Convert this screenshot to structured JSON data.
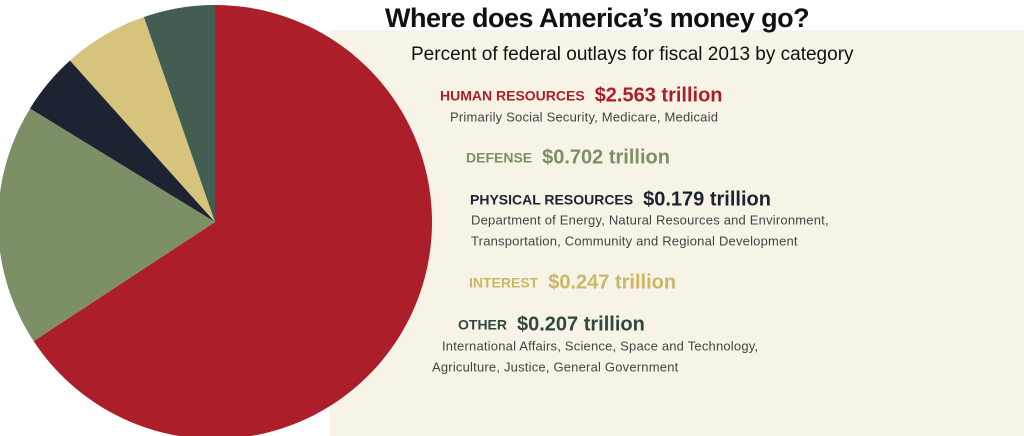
{
  "chart_data": {
    "type": "pie",
    "title": "Where does America’s money go?",
    "subtitle": "Percent of federal outlays for fiscal 2013 by category",
    "categories": [
      "HUMAN RESOURCES",
      "DEFENSE",
      "PHYSICAL RESOURCES",
      "INTEREST",
      "OTHER"
    ],
    "values": [
      2.563,
      0.702,
      0.179,
      0.247,
      0.207
    ],
    "value_labels": [
      "$2.563 trillion",
      "$0.702 trillion",
      "$0.179 trillion",
      "$0.247 trillion",
      "$0.207 trillion"
    ],
    "colors": [
      "#ad1e2b",
      "#7d8f66",
      "#1e2332",
      "#d6c47c",
      "#445d53"
    ],
    "descriptions": [
      [
        "Primarily Social Security, Medicare, Medicaid"
      ],
      [],
      [
        "Department of Energy, Natural Resources and Environment,",
        "Transportation, Community and Regional Development"
      ],
      [],
      [
        "International Affairs, Science, Space and Technology,",
        "Agriculture, Justice, General Government"
      ]
    ]
  }
}
